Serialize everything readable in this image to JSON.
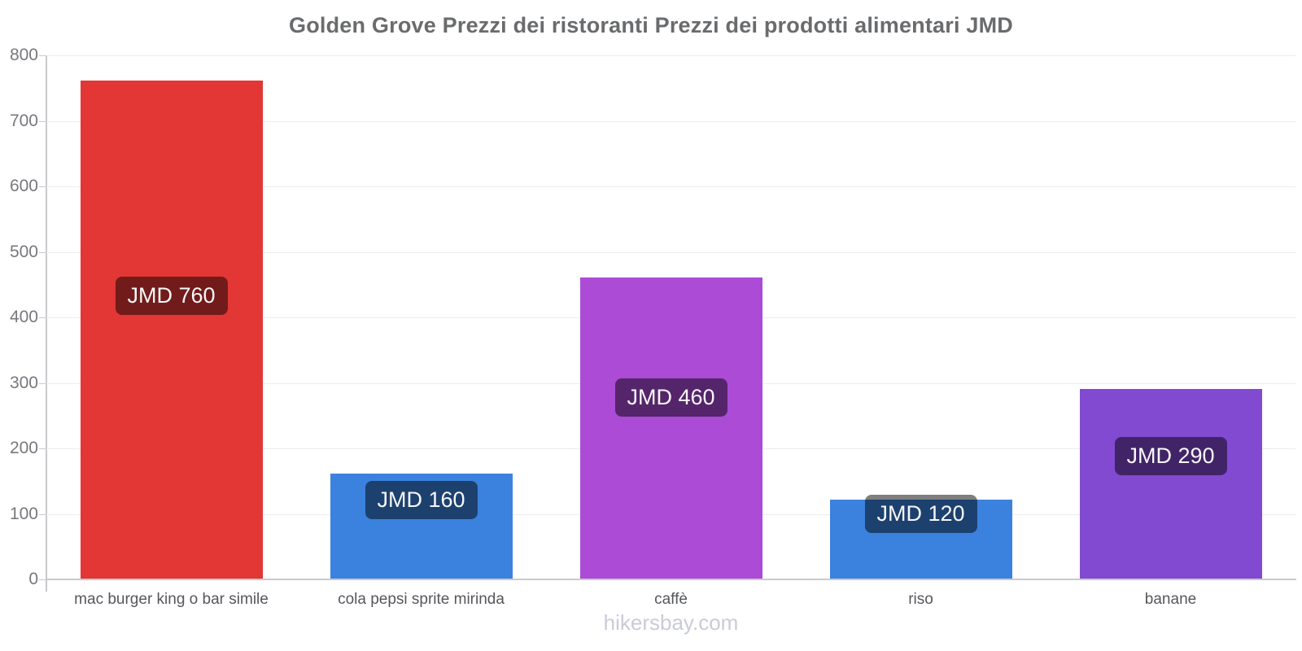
{
  "chart_data": {
    "type": "bar",
    "title": "Golden Grove Prezzi dei ristoranti Prezzi dei prodotti alimentari JMD",
    "currency": "JMD",
    "categories": [
      "mac burger king o bar simile",
      "cola pepsi sprite mirinda",
      "caffè",
      "riso",
      "banane"
    ],
    "values": [
      760,
      160,
      460,
      120,
      290
    ],
    "value_labels": [
      "JMD 760",
      "JMD 160",
      "JMD 460",
      "JMD 120",
      "JMD 290"
    ],
    "bar_colors": [
      "#e23734",
      "#3b82de",
      "#ab4bd6",
      "#3b82de",
      "#8249d1"
    ],
    "ylim": [
      0,
      800
    ],
    "yticks": [
      0,
      100,
      200,
      300,
      400,
      500,
      600,
      700,
      800
    ],
    "xlabel": "",
    "ylabel": "",
    "grid": "horizontal",
    "legend": "none",
    "value_badge_bg": "rgba(0,0,0,0.5)",
    "value_badge_text_color": "#f7f7f7"
  },
  "footer": {
    "watermark": "hikersbay.com"
  },
  "theme": {
    "background": "#ffffff",
    "title_color": "#6a6b6d",
    "tick_label_color": "#77787c",
    "category_label_color": "#55575c",
    "gridline_color": "#ececf0",
    "axis_line_color": "#c9c9ce",
    "watermark_color": "#c9cbd8"
  }
}
